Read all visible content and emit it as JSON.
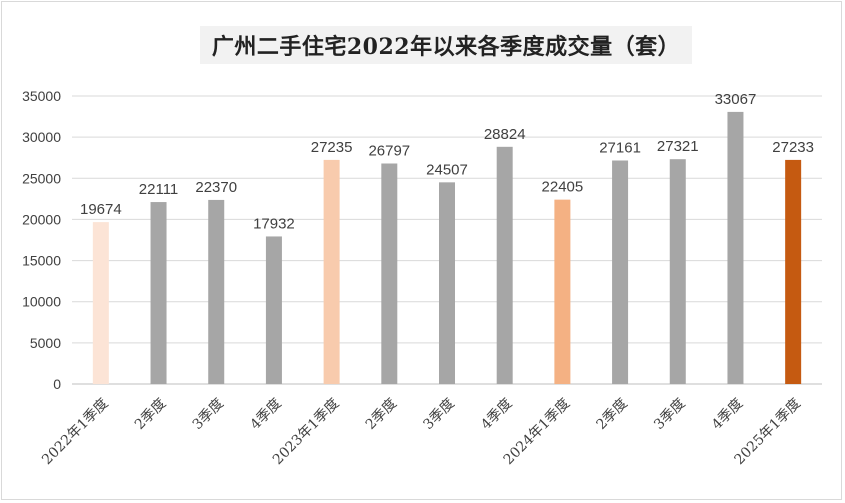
{
  "chart_data": {
    "type": "bar",
    "title": "广州二手住宅2022年以来各季度成交量（套）",
    "categories": [
      "2022年1季度",
      "2季度",
      "3季度",
      "4季度",
      "2023年1季度",
      "2季度",
      "3季度",
      "4季度",
      "2024年1季度",
      "2季度",
      "3季度",
      "4季度",
      "2025年1季度"
    ],
    "values": [
      19674,
      22111,
      22370,
      17932,
      27235,
      26797,
      24507,
      28824,
      22405,
      27161,
      27321,
      33067,
      27233
    ],
    "colors": [
      "#fce4d6",
      "#a6a6a6",
      "#a6a6a6",
      "#a6a6a6",
      "#f8cbad",
      "#a6a6a6",
      "#a6a6a6",
      "#a6a6a6",
      "#f4b183",
      "#a6a6a6",
      "#a6a6a6",
      "#a6a6a6",
      "#c55a11"
    ],
    "ylim": [
      0,
      35000
    ],
    "yticks": [
      0,
      5000,
      10000,
      15000,
      20000,
      25000,
      30000,
      35000
    ],
    "grid": true,
    "legend": "none",
    "xlabel": "",
    "ylabel": ""
  }
}
